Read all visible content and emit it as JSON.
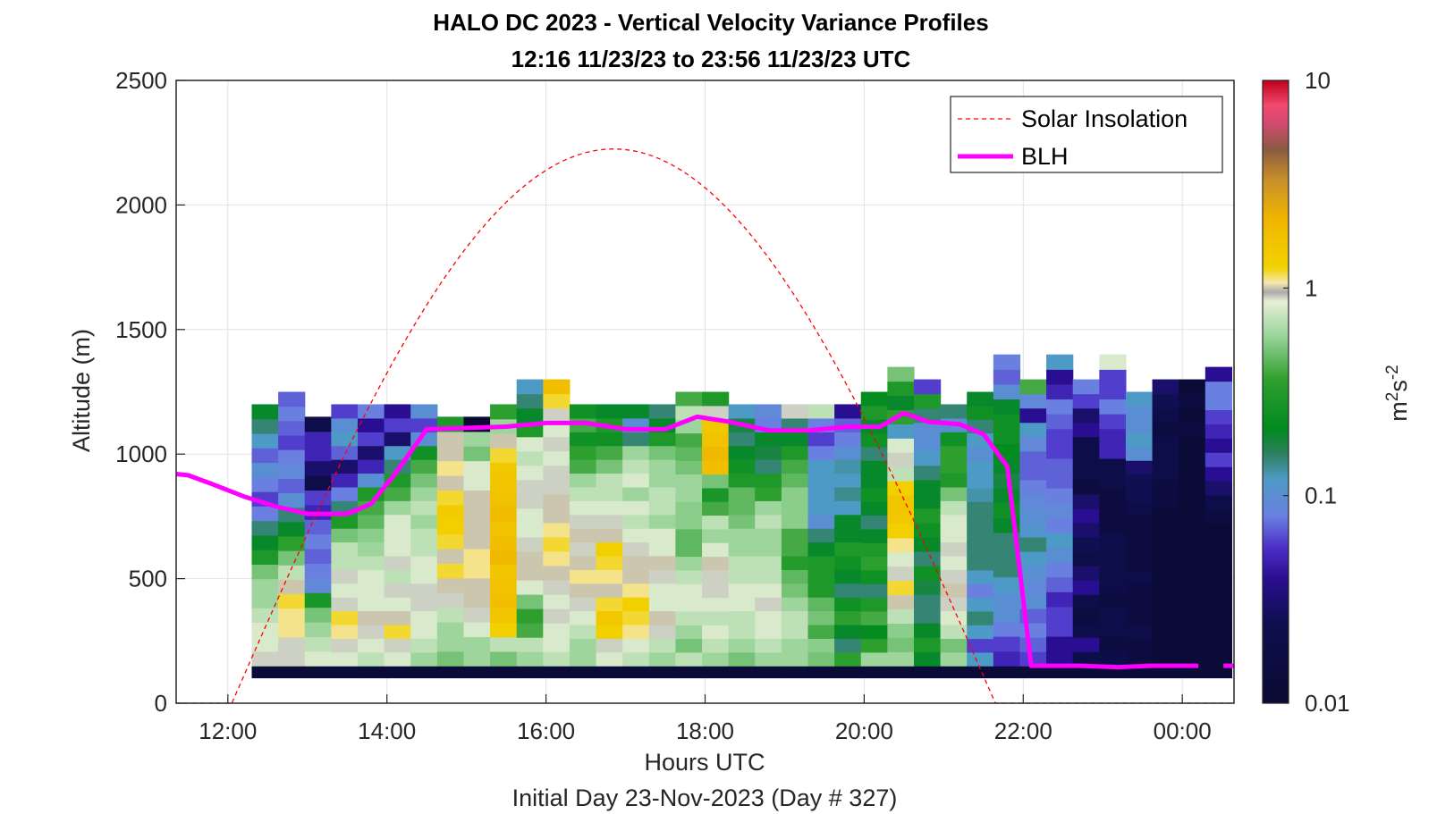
{
  "chart_data": {
    "type": "heatmap",
    "title": "HALO DC 2023 - Vertical Velocity Variance Profiles",
    "subtitle": "12:16 11/23/23 to 23:56 11/23/23  UTC",
    "xlabel": "Hours UTC",
    "xlabel2": "Initial Day 23-Nov-2023 (Day # 327)",
    "ylabel": "Altitude (m)",
    "colorbar_label_main": "m",
    "colorbar_label_sup1": "2",
    "colorbar_label_s": "s",
    "colorbar_label_sup2": "-2",
    "xlim": [
      11.35,
      24.65
    ],
    "ylim": [
      0,
      2500
    ],
    "x_ticks": [
      {
        "value": 12,
        "label": "12:00"
      },
      {
        "value": 14,
        "label": "14:00"
      },
      {
        "value": 16,
        "label": "16:00"
      },
      {
        "value": 18,
        "label": "18:00"
      },
      {
        "value": 20,
        "label": "20:00"
      },
      {
        "value": 22,
        "label": "22:00"
      },
      {
        "value": 24,
        "label": "00:00"
      }
    ],
    "y_ticks": [
      {
        "value": 0,
        "label": "0"
      },
      {
        "value": 500,
        "label": "500"
      },
      {
        "value": 1000,
        "label": "1000"
      },
      {
        "value": 1500,
        "label": "1500"
      },
      {
        "value": 2000,
        "label": "2000"
      },
      {
        "value": 2500,
        "label": "2500"
      }
    ],
    "colorbar": {
      "scale": "log",
      "range": [
        0.01,
        10
      ],
      "ticks": [
        {
          "value": 0.01,
          "label": "0.01"
        },
        {
          "value": 0.1,
          "label": "0.1"
        },
        {
          "value": 1,
          "label": "1"
        },
        {
          "value": 10,
          "label": "10"
        }
      ]
    },
    "grid": true,
    "legend_position": "top-right",
    "legend": [
      {
        "label": "Solar Insolation",
        "color": "#ff0000",
        "style": "dashed"
      },
      {
        "label": "BLH",
        "color": "#ff00ff",
        "style": "solid"
      }
    ],
    "heatmap": {
      "time_start": 12.3,
      "time_step": 0.333,
      "alt_bins": [
        100,
        150,
        200,
        250,
        300,
        350,
        400,
        450,
        500,
        550,
        600,
        650,
        700,
        750,
        800,
        850,
        900,
        950,
        1000,
        1050,
        1100,
        1150,
        1200,
        1250,
        1300,
        1350
      ],
      "bottom_row_value": 0.012,
      "columns": [
        {
          "top": 1200,
          "values": [
            0.9,
            0.8,
            0.8,
            0.7,
            0.6,
            0.6,
            0.5,
            0.3,
            0.2,
            0.15,
            0.08,
            0.06,
            0.08,
            0.1,
            0.07,
            0.12,
            0.15,
            0.2
          ]
        },
        {
          "top": 1250,
          "values": [
            0.9,
            0.9,
            1.1,
            1.1,
            1.2,
            1.0,
            0.7,
            0.5,
            0.35,
            0.2,
            0.15,
            0.1,
            0.07,
            0.09,
            0.08,
            0.06,
            0.07,
            0.08,
            0.07
          ]
        },
        {
          "top": 1150,
          "values": [
            0.8,
            0.7,
            0.6,
            0.5,
            0.28,
            0.09,
            0.08,
            0.07,
            0.08,
            0.07,
            0.05,
            0.06,
            0.02,
            0.03,
            0.05,
            0.05,
            0.02
          ]
        },
        {
          "top": 1200,
          "values": [
            0.8,
            0.9,
            1.1,
            1.2,
            0.9,
            0.8,
            0.9,
            0.7,
            0.7,
            0.5,
            0.3,
            0.15,
            0.08,
            0.05,
            0.03,
            0.07,
            0.12,
            0.1,
            0.06
          ]
        },
        {
          "top": 1200,
          "values": [
            0.7,
            0.8,
            0.9,
            1.0,
            0.8,
            0.8,
            0.8,
            0.7,
            0.6,
            0.55,
            0.45,
            0.4,
            0.3,
            0.1,
            0.05,
            0.03,
            0.06,
            0.04,
            0.08
          ]
        },
        {
          "top": 1200,
          "values": [
            0.8,
            0.9,
            1.2,
            1.0,
            0.8,
            0.9,
            0.7,
            0.9,
            0.8,
            0.8,
            0.8,
            0.6,
            0.4,
            0.3,
            0.15,
            0.12,
            0.03,
            0.06,
            0.04
          ]
        },
        {
          "top": 1200,
          "values": [
            0.6,
            0.7,
            0.8,
            0.8,
            0.9,
            0.9,
            0.8,
            0.8,
            0.7,
            0.7,
            0.6,
            0.7,
            0.6,
            0.5,
            0.4,
            0.25,
            0.1,
            0.06,
            0.1
          ]
        },
        {
          "top": 1150,
          "values": [
            0.5,
            0.6,
            0.6,
            0.7,
            0.9,
            1.0,
            1.2,
            1.0,
            1.2,
            1.3,
            1.4,
            1.2,
            1.0,
            1.1,
            1.0,
            1.0,
            0.3
          ]
        },
        {
          "top": 1150,
          "values": [
            0.6,
            0.6,
            0.8,
            0.9,
            1.0,
            1.0,
            1.1,
            1.1,
            1.0,
            1.0,
            1.0,
            1.0,
            0.8,
            0.8,
            0.5,
            0.6,
            0.01
          ]
        },
        {
          "top": 1200,
          "values": [
            0.5,
            0.7,
            1.3,
            1.6,
            1.8,
            1.7,
            1.6,
            2.0,
            1.8,
            1.7,
            1.9,
            1.7,
            1.6,
            1.5,
            1.2,
            1.0,
            0.6,
            0.35
          ]
        },
        {
          "top": 1300,
          "values": [
            0.6,
            0.7,
            0.4,
            0.35,
            0.5,
            0.8,
            1.0,
            1.0,
            0.9,
            0.8,
            0.8,
            0.9,
            0.9,
            0.8,
            0.7,
            0.8,
            0.3,
            0.2,
            0.15,
            0.12
          ]
        },
        {
          "top": 1300,
          "values": [
            0.7,
            0.8,
            0.8,
            0.9,
            0.8,
            0.9,
            1.0,
            1.1,
            1.2,
            1.1,
            1.0,
            1.0,
            0.9,
            0.9,
            0.8,
            0.9,
            0.8,
            0.9,
            1.2,
            1.8
          ]
        },
        {
          "top": 1200,
          "values": [
            0.6,
            0.6,
            0.7,
            0.8,
            0.9,
            1.0,
            1.1,
            1.0,
            0.9,
            1.0,
            0.9,
            0.8,
            0.7,
            0.6,
            0.4,
            0.35,
            0.25,
            0.4,
            0.25
          ]
        },
        {
          "top": 1200,
          "values": [
            0.8,
            0.9,
            1.3,
            1.5,
            1.2,
            1.0,
            1.1,
            1.2,
            1.3,
            1.0,
            0.9,
            0.8,
            0.7,
            0.7,
            0.5,
            0.4,
            0.25,
            0.3,
            0.2
          ]
        },
        {
          "top": 1200,
          "values": [
            0.7,
            0.8,
            1.1,
            1.2,
            1.3,
            1.1,
            1.0,
            1.0,
            0.9,
            0.8,
            0.7,
            0.8,
            0.6,
            0.8,
            0.7,
            0.6,
            0.15,
            0.1,
            0.2
          ]
        },
        {
          "top": 1200,
          "values": [
            0.6,
            0.7,
            0.9,
            1.0,
            0.8,
            0.8,
            0.9,
            1.0,
            0.8,
            0.8,
            0.6,
            0.7,
            0.7,
            0.6,
            0.6,
            0.5,
            0.3,
            0.2,
            0.15
          ]
        },
        {
          "top": 1250,
          "values": [
            0.7,
            0.5,
            0.6,
            0.7,
            0.8,
            0.8,
            0.7,
            0.6,
            0.45,
            0.45,
            0.55,
            0.55,
            0.6,
            0.6,
            0.5,
            0.45,
            0.4,
            0.6,
            0.7,
            0.4
          ]
        },
        {
          "top": 1250,
          "values": [
            0.6,
            0.7,
            0.8,
            0.7,
            0.8,
            0.9,
            0.9,
            1.0,
            0.8,
            0.6,
            0.7,
            0.4,
            0.28,
            0.5,
            1.8,
            2.0,
            1.7,
            1.5,
            0.9,
            0.3
          ]
        },
        {
          "top": 1200,
          "values": [
            0.5,
            0.6,
            0.7,
            0.7,
            0.8,
            0.8,
            0.7,
            0.7,
            0.6,
            0.6,
            0.5,
            0.45,
            0.45,
            0.3,
            0.25,
            0.2,
            0.15,
            0.18,
            0.12
          ]
        },
        {
          "top": 1200,
          "values": [
            0.6,
            0.7,
            0.8,
            0.8,
            0.9,
            0.8,
            0.7,
            0.7,
            0.6,
            0.6,
            0.7,
            0.6,
            0.35,
            0.3,
            0.15,
            0.18,
            0.2,
            0.08,
            0.09
          ]
        },
        {
          "top": 1200,
          "values": [
            0.6,
            0.6,
            0.7,
            0.7,
            0.6,
            0.5,
            0.45,
            0.32,
            0.4,
            0.4,
            0.55,
            0.55,
            0.55,
            0.45,
            0.4,
            0.3,
            0.2,
            0.15,
            0.9
          ]
        },
        {
          "top": 1200,
          "values": [
            0.5,
            0.55,
            0.4,
            0.5,
            0.45,
            0.3,
            0.3,
            0.3,
            0.2,
            0.15,
            0.1,
            0.12,
            0.12,
            0.12,
            0.12,
            0.08,
            0.06,
            0.08,
            0.7
          ]
        },
        {
          "top": 1200,
          "values": [
            0.35,
            0.15,
            0.2,
            0.35,
            0.25,
            0.15,
            0.2,
            0.25,
            0.3,
            0.2,
            0.2,
            0.12,
            0.14,
            0.12,
            0.13,
            0.1,
            0.08,
            0.07,
            0.04
          ]
        },
        {
          "top": 1250,
          "values": [
            0.6,
            0.35,
            0.22,
            0.4,
            0.3,
            0.15,
            0.25,
            0.35,
            0.3,
            0.2,
            0.15,
            0.2,
            0.25,
            0.2,
            0.2,
            0.15,
            0.25,
            0.2,
            0.3,
            0.22
          ]
        },
        {
          "top": 1350,
          "values": [
            0.6,
            0.5,
            0.55,
            0.7,
            1.0,
            1.2,
            0.9,
            0.8,
            1.1,
            1.3,
            1.5,
            1.6,
            1.3,
            0.7,
            0.9,
            0.8,
            0.12,
            0.35,
            0.2,
            0.3,
            0.5
          ]
        },
        {
          "top": 1300,
          "values": [
            0.2,
            0.3,
            0.2,
            0.15,
            0.15,
            0.18,
            0.25,
            0.15,
            0.2,
            0.25,
            0.3,
            0.2,
            0.2,
            0.15,
            0.12,
            0.1,
            0.1,
            0.15,
            0.3,
            0.06
          ]
        },
        {
          "top": 1200,
          "values": [
            0.6,
            0.5,
            0.7,
            0.8,
            0.9,
            1.0,
            0.9,
            0.8,
            0.9,
            0.8,
            0.8,
            0.7,
            0.5,
            0.3,
            0.35,
            0.35,
            0.25,
            0.1,
            0.15
          ]
        },
        {
          "top": 1250,
          "values": [
            0.12,
            0.06,
            0.12,
            0.15,
            0.12,
            0.08,
            0.12,
            0.15,
            0.15,
            0.15,
            0.15,
            0.15,
            0.13,
            0.12,
            0.12,
            0.1,
            0.12,
            0.15,
            0.25,
            0.2
          ]
        },
        {
          "top": 1400,
          "values": [
            0.05,
            0.06,
            0.08,
            0.1,
            0.1,
            0.12,
            0.15,
            0.15,
            0.15,
            0.2,
            0.25,
            0.2,
            0.18,
            0.2,
            0.22,
            0.25,
            0.25,
            0.2,
            0.1,
            0.07,
            0.08
          ]
        },
        {
          "top": 1300,
          "values": [
            0.06,
            0.07,
            0.08,
            0.07,
            0.1,
            0.09,
            0.1,
            0.12,
            0.15,
            0.11,
            0.1,
            0.09,
            0.08,
            0.07,
            0.07,
            0.09,
            0.12,
            0.04,
            0.09,
            0.4
          ]
        },
        {
          "top": 1400,
          "values": [
            0.04,
            0.04,
            0.06,
            0.06,
            0.05,
            0.07,
            0.08,
            0.1,
            0.12,
            0.08,
            0.09,
            0.08,
            0.07,
            0.07,
            0.06,
            0.06,
            0.07,
            0.08,
            0.05,
            0.04,
            0.12
          ]
        },
        {
          "top": 1300,
          "values": [
            0.02,
            0.04,
            0.02,
            0.015,
            0.02,
            0.04,
            0.03,
            0.02,
            0.025,
            0.03,
            0.04,
            0.03,
            0.015,
            0.02,
            0.02,
            0.02,
            0.04,
            0.03,
            0.06,
            0.08
          ]
        },
        {
          "top": 1400,
          "values": [
            0.02,
            0.015,
            0.02,
            0.02,
            0.015,
            0.02,
            0.02,
            0.02,
            0.02,
            0.015,
            0.015,
            0.015,
            0.02,
            0.02,
            0.05,
            0.05,
            0.06,
            0.08,
            0.06,
            0.06,
            0.8
          ]
        },
        {
          "top": 1250,
          "values": [
            0.015,
            0.015,
            0.02,
            0.015,
            0.015,
            0.015,
            0.02,
            0.015,
            0.015,
            0.015,
            0.015,
            0.02,
            0.025,
            0.025,
            0.03,
            0.1,
            0.12,
            0.1,
            0.1,
            0.12
          ]
        },
        {
          "top": 1300,
          "values": [
            0.012,
            0.012,
            0.012,
            0.012,
            0.012,
            0.012,
            0.012,
            0.012,
            0.012,
            0.012,
            0.012,
            0.015,
            0.015,
            0.02,
            0.02,
            0.02,
            0.015,
            0.02,
            0.025,
            0.03
          ]
        },
        {
          "top": 1300,
          "values": [
            0.012,
            0.012,
            0.012,
            0.012,
            0.012,
            0.012,
            0.012,
            0.012,
            0.012,
            0.012,
            0.012,
            0.012,
            0.012,
            0.012,
            0.012,
            0.012,
            0.015,
            0.012,
            0.015,
            0.012
          ]
        },
        {
          "top": 1350,
          "values": [
            0.012,
            0.012,
            0.012,
            0.012,
            0.012,
            0.012,
            0.012,
            0.012,
            0.012,
            0.012,
            0.015,
            0.02,
            0.03,
            0.04,
            0.06,
            0.04,
            0.05,
            0.06,
            0.08,
            0.08,
            0.04
          ]
        }
      ]
    },
    "solar_insolation": {
      "sunrise": 12.05,
      "sunset": 21.65,
      "peak_time": 16.85,
      "peak_altitude_equiv": 2225
    },
    "blh": {
      "x": [
        11.35,
        11.5,
        11.8,
        12.2,
        12.6,
        13.0,
        13.5,
        13.8,
        14.1,
        14.5,
        15.0,
        15.5,
        16.0,
        16.5,
        17.0,
        17.5,
        17.9,
        18.3,
        18.8,
        19.3,
        19.8,
        20.2,
        20.5,
        20.8,
        21.2,
        21.5,
        21.8,
        22.1,
        22.3,
        22.7,
        23.2,
        23.6,
        24.0
      ],
      "y": [
        920,
        915,
        880,
        830,
        790,
        760,
        760,
        800,
        920,
        1100,
        1105,
        1110,
        1125,
        1125,
        1100,
        1100,
        1150,
        1130,
        1095,
        1095,
        1110,
        1110,
        1165,
        1130,
        1120,
        1080,
        950,
        150,
        150,
        150,
        145,
        150,
        150
      ],
      "dashed_tail_x": [
        24.0,
        24.65
      ]
    }
  }
}
